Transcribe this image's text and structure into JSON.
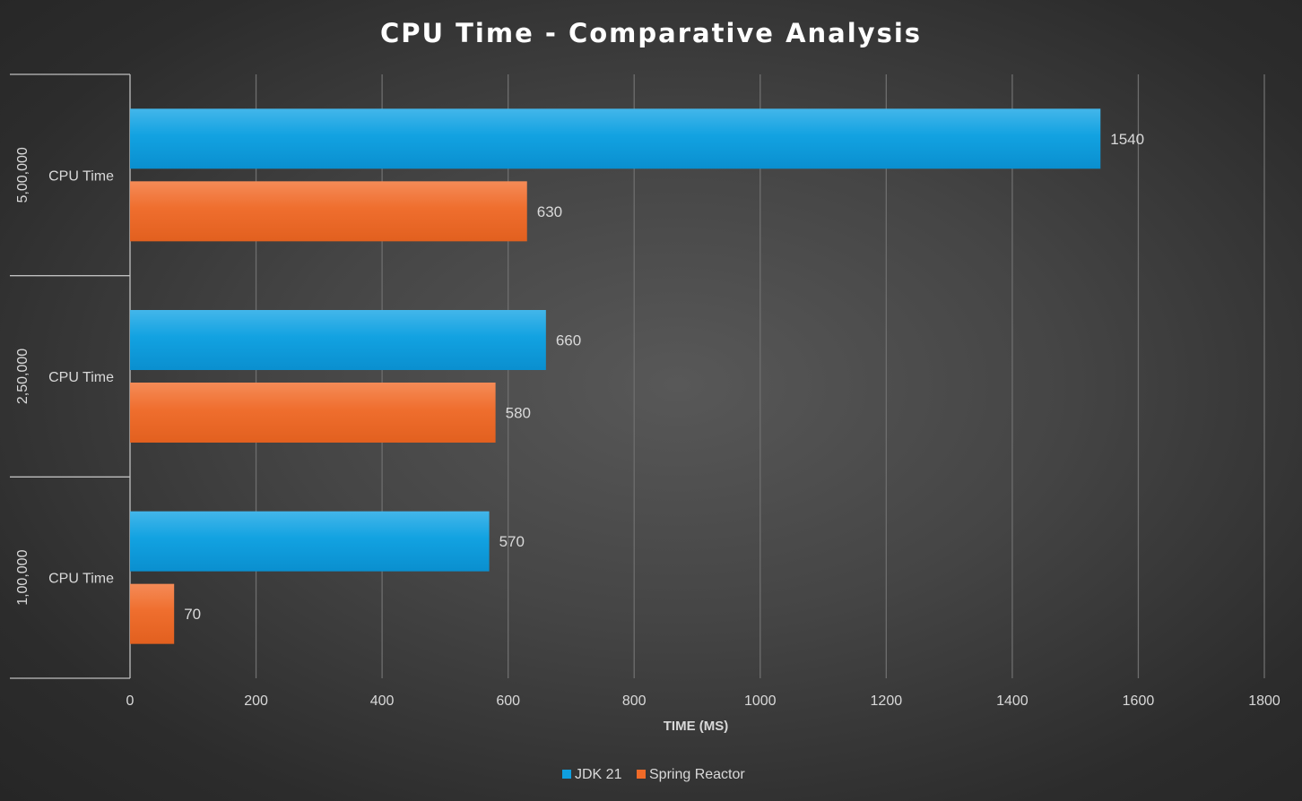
{
  "chart_data": {
    "type": "bar",
    "orientation": "horizontal",
    "title": "CPU Time - Comparative Analysis",
    "xlabel": "TIME (MS)",
    "ylabel": "",
    "xlim": [
      0,
      1800
    ],
    "xticks": [
      "0",
      "200",
      "400",
      "600",
      "800",
      "1000",
      "1200",
      "1400",
      "1600",
      "1800"
    ],
    "grid": true,
    "legend_position": "bottom",
    "groups": [
      {
        "label": "5,00,000",
        "category": "CPU Time"
      },
      {
        "label": "2,50,000",
        "category": "CPU Time"
      },
      {
        "label": "1,00,000",
        "category": "CPU Time"
      }
    ],
    "series": [
      {
        "name": "JDK 21",
        "color": "#0F9FDF",
        "values": [
          1540,
          660,
          570
        ]
      },
      {
        "name": "Spring Reactor",
        "color": "#EF6A28",
        "values": [
          630,
          580,
          70
        ]
      }
    ]
  }
}
